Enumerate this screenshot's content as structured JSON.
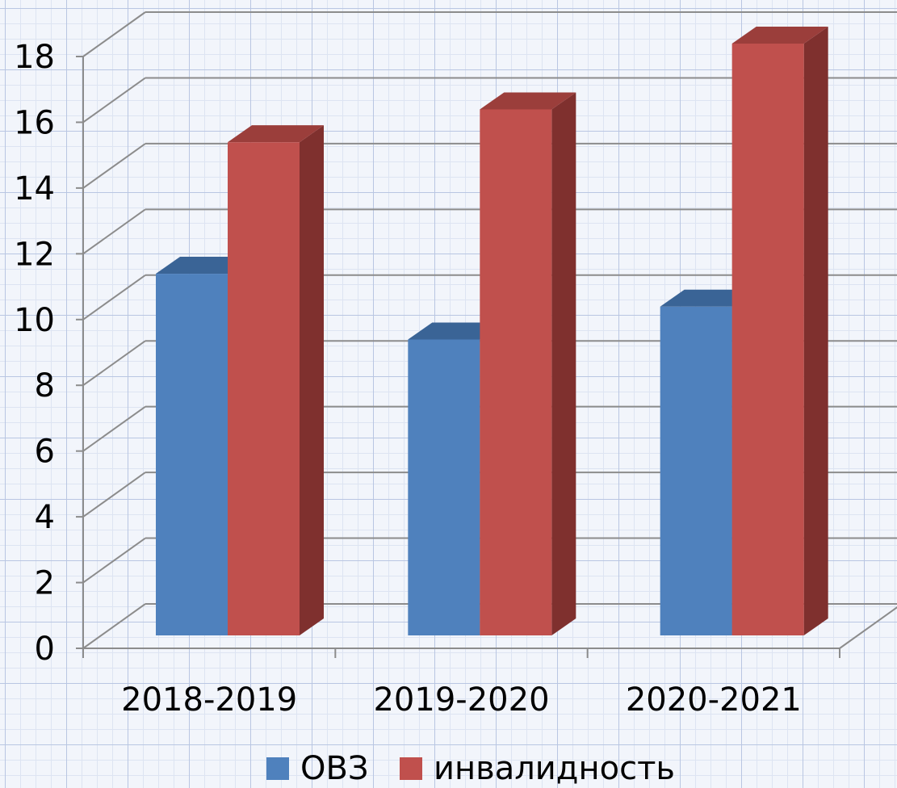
{
  "chart_data": {
    "type": "bar",
    "categories": [
      "2018-2019",
      "2019-2020",
      "2020-2021"
    ],
    "series": [
      {
        "name": "ОВЗ",
        "values": [
          11,
          9,
          10
        ],
        "color": "#4f81bd",
        "top_color": "#3a6496"
      },
      {
        "name": "инвалидность",
        "values": [
          15,
          16,
          18
        ],
        "color": "#c0504d",
        "top_color": "#9b3e3b",
        "side_color": "#7f302e"
      }
    ],
    "yticks": [
      "0",
      "2",
      "4",
      "6",
      "8",
      "10",
      "12",
      "14",
      "16",
      "18"
    ],
    "ylim": [
      0,
      18
    ],
    "grid": true,
    "legend": "bottom",
    "style": "3d-clustered-column"
  }
}
